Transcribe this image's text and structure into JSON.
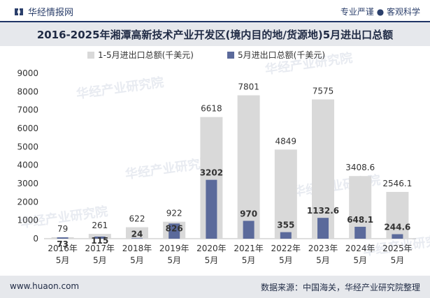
{
  "header": {
    "brand": "华经情报网",
    "slogan": "专业严谨 ● 客观科学"
  },
  "title": "2016-2025年湘潭高新技术产业开发区(境内目的地/货源地)5月进出口总额",
  "footer": {
    "website": "www.huaon.com",
    "source": "数据来源：中国海关，华经产业研究院整理"
  },
  "watermark": "华经产业研究院",
  "colors": {
    "series1": "#d9d9d9",
    "series2": "#5b6a9b",
    "accent": "#1f3566"
  },
  "chart_data": {
    "type": "bar",
    "categories": [
      [
        "2016年",
        "5月"
      ],
      [
        "2017年",
        "5月"
      ],
      [
        "2018年",
        "5月"
      ],
      [
        "2019年",
        "5月"
      ],
      [
        "2020年",
        "5月"
      ],
      [
        "2021年",
        "5月"
      ],
      [
        "2022年",
        "5月"
      ],
      [
        "2023年",
        "5月"
      ],
      [
        "2024年",
        "5月"
      ],
      [
        "2025年",
        "5月"
      ]
    ],
    "series": [
      {
        "name": "1-5月进出口总额(千美元)",
        "values": [
          79,
          261,
          622,
          922,
          6618,
          7801,
          4849,
          7575,
          3408.6,
          2546.1
        ],
        "labels": [
          "79",
          "261",
          "622",
          "922",
          "6618",
          "7801",
          "4849",
          "7575",
          "3408.6",
          "2546.1"
        ]
      },
      {
        "name": "5月进出口总额(千美元)",
        "values": [
          73,
          115,
          24,
          826,
          3202,
          970,
          355,
          1132.6,
          648.1,
          244.6
        ],
        "labels": [
          "73",
          "115",
          "24",
          "826",
          "3202",
          "970",
          "355",
          "1132.6",
          "648.1",
          "244.6"
        ]
      }
    ],
    "ylim": [
      0,
      9000
    ],
    "yticks": [
      "0",
      "1000",
      "2000",
      "3000",
      "4000",
      "5000",
      "6000",
      "7000",
      "8000",
      "9000"
    ],
    "legend": "top"
  }
}
